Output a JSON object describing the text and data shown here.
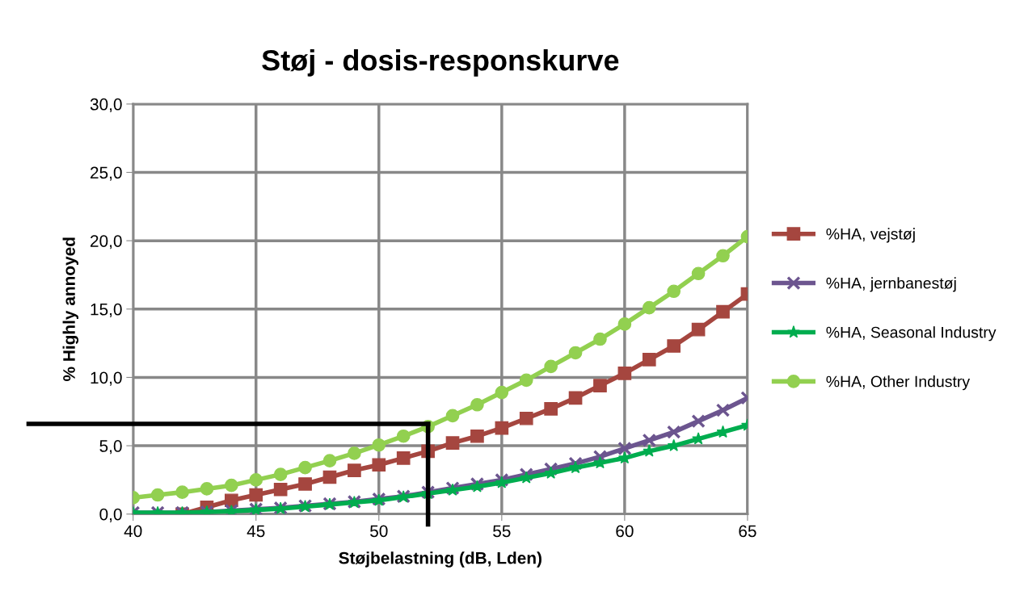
{
  "chart_data": {
    "type": "line",
    "title": "Støj - dosis-responskurve",
    "xlabel": "Støjbelastning (dB, Lden)",
    "ylabel": "% Highly annoyed",
    "x": [
      40,
      41,
      42,
      43,
      44,
      45,
      46,
      47,
      48,
      49,
      50,
      51,
      52,
      53,
      54,
      55,
      56,
      57,
      58,
      59,
      60,
      61,
      62,
      63,
      64,
      65
    ],
    "series": [
      {
        "name": "%HA, vejstøj",
        "color": "#a5463f",
        "marker": "square",
        "values": [
          null,
          null,
          0.0,
          0.5,
          1.0,
          1.4,
          1.8,
          2.2,
          2.7,
          3.2,
          3.6,
          4.1,
          4.6,
          5.2,
          5.7,
          6.3,
          7.0,
          7.7,
          8.5,
          9.4,
          10.3,
          11.3,
          12.3,
          13.5,
          14.8,
          16.1
        ]
      },
      {
        "name": "%HA, jernbanestøj",
        "color": "#6c558f",
        "marker": "cross",
        "values": [
          0.1,
          0.1,
          0.1,
          0.15,
          0.25,
          0.35,
          0.45,
          0.6,
          0.75,
          0.9,
          1.1,
          1.3,
          1.6,
          1.9,
          2.2,
          2.5,
          2.9,
          3.3,
          3.7,
          4.2,
          4.8,
          5.4,
          6.0,
          6.8,
          7.6,
          8.5
        ]
      },
      {
        "name": "%HA, Seasonal Industry",
        "color": "#00ad4f",
        "marker": "star",
        "values": [
          0.1,
          0.1,
          0.1,
          0.15,
          0.2,
          0.3,
          0.4,
          0.55,
          0.7,
          0.85,
          1.0,
          1.25,
          1.5,
          1.75,
          2.0,
          2.3,
          2.65,
          3.0,
          3.4,
          3.75,
          4.1,
          4.6,
          5.0,
          5.5,
          6.0,
          6.5
        ]
      },
      {
        "name": "%HA, Other Industry",
        "color": "#92d050",
        "marker": "circle",
        "values": [
          1.2,
          1.4,
          1.6,
          1.85,
          2.1,
          2.5,
          2.9,
          3.4,
          3.9,
          4.45,
          5.05,
          5.7,
          6.4,
          7.2,
          8.0,
          8.9,
          9.8,
          10.8,
          11.8,
          12.8,
          13.9,
          15.1,
          16.3,
          17.6,
          18.9,
          20.3
        ]
      }
    ],
    "ref_lines": [
      {
        "axis": "y",
        "value": 6.6,
        "color": "#000000"
      },
      {
        "axis": "x",
        "value": 52,
        "color": "#000000"
      }
    ],
    "xlim": [
      40,
      65
    ],
    "xticks": [
      40,
      45,
      50,
      55,
      60,
      65
    ],
    "ylim": [
      0,
      30
    ],
    "yticks": [
      {
        "value": 0,
        "label": "0,0"
      },
      {
        "value": 5,
        "label": "5,0"
      },
      {
        "value": 10,
        "label": "10,0"
      },
      {
        "value": 15,
        "label": "15,0"
      },
      {
        "value": 20,
        "label": "20,0"
      },
      {
        "value": 25,
        "label": "25,0"
      },
      {
        "value": 30,
        "label": "30,0"
      }
    ],
    "grid": true,
    "legend": "right",
    "line_style": "solid"
  }
}
